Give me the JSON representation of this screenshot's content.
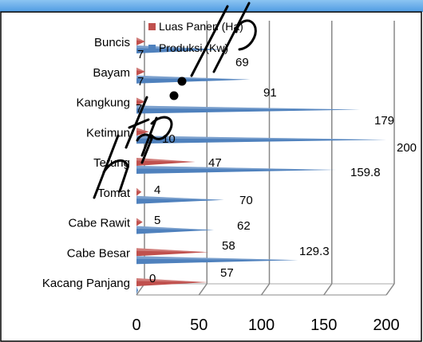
{
  "chart_data": {
    "type": "bar",
    "orientation": "horizontal",
    "categories": [
      "Kacang Panjang",
      "Cabe Besar",
      "Cabe Rawit",
      "Tomat",
      "Terung",
      "Ketimun",
      "Kangkung",
      "Bayam",
      "Buncis"
    ],
    "series": [
      {
        "name": "Luas Panen (Ha)",
        "values": [
          57,
          58,
          5,
          4,
          47,
          10,
          7,
          7,
          7
        ],
        "labels": [
          "57",
          "58",
          "5",
          "4",
          "47",
          "10",
          "7",
          "7",
          "7"
        ],
        "color": "#c0504d"
      },
      {
        "name": "Produksi (Kw)",
        "values": [
          0,
          129.3,
          62,
          70,
          159.8,
          200,
          179,
          91,
          69
        ],
        "labels": [
          "0",
          "129.3",
          "62",
          "70",
          "159.8",
          "200",
          "179",
          "91",
          "69"
        ],
        "color": "#4f81bd"
      }
    ],
    "xlim": [
      0,
      200
    ],
    "xticks": [
      "0",
      "50",
      "100",
      "150",
      "200"
    ],
    "grid": true,
    "legend_position": "top",
    "title": "",
    "xlabel": "",
    "ylabel": ""
  },
  "watermark_text": "http://...",
  "colors": {
    "header_band": "#62a9e6",
    "border": "#000000",
    "grid": "#888888"
  }
}
